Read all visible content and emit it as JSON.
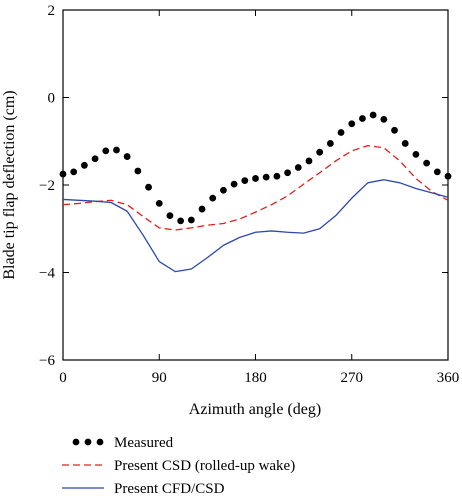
{
  "chart_data": {
    "type": "line",
    "title": "",
    "xlabel": "Azimuth angle (deg)",
    "ylabel": "Blade tip flap deflection (cm)",
    "xlim": [
      0,
      360
    ],
    "ylim": [
      -6,
      2
    ],
    "xticks": [
      0,
      90,
      180,
      270,
      360
    ],
    "yticks": [
      -6,
      -4,
      -2,
      0,
      2
    ],
    "xtick_labels": [
      "0",
      "90",
      "180",
      "270",
      "360"
    ],
    "ytick_labels": [
      "−6",
      "−4",
      "−2",
      "0",
      "2"
    ],
    "grid": false,
    "legend_position": "bottom-left",
    "series": [
      {
        "name": "Measured",
        "style": "dots",
        "color": "#000000",
        "x": [
          0,
          10,
          20,
          30,
          40,
          50,
          60,
          70,
          80,
          90,
          100,
          110,
          120,
          130,
          140,
          150,
          160,
          170,
          180,
          190,
          200,
          210,
          220,
          230,
          240,
          250,
          260,
          270,
          280,
          290,
          300,
          310,
          320,
          330,
          340,
          350,
          360
        ],
        "y": [
          -1.75,
          -1.7,
          -1.55,
          -1.4,
          -1.22,
          -1.2,
          -1.35,
          -1.68,
          -2.05,
          -2.42,
          -2.7,
          -2.82,
          -2.8,
          -2.55,
          -2.3,
          -2.12,
          -1.98,
          -1.9,
          -1.85,
          -1.82,
          -1.8,
          -1.72,
          -1.6,
          -1.45,
          -1.25,
          -1.05,
          -0.8,
          -0.6,
          -0.48,
          -0.4,
          -0.5,
          -0.75,
          -1.05,
          -1.3,
          -1.5,
          -1.7,
          -1.8
        ]
      },
      {
        "name": "Present CSD (rolled-up wake)",
        "style": "dashed",
        "color": "#e0201c",
        "x": [
          0,
          15,
          30,
          45,
          60,
          75,
          90,
          105,
          120,
          135,
          150,
          165,
          180,
          195,
          210,
          225,
          240,
          255,
          270,
          285,
          300,
          315,
          330,
          345,
          360
        ],
        "y": [
          -2.45,
          -2.42,
          -2.38,
          -2.35,
          -2.45,
          -2.72,
          -2.98,
          -3.03,
          -2.98,
          -2.92,
          -2.88,
          -2.78,
          -2.62,
          -2.45,
          -2.25,
          -1.98,
          -1.72,
          -1.45,
          -1.22,
          -1.1,
          -1.15,
          -1.45,
          -1.85,
          -2.15,
          -2.35
        ]
      },
      {
        "name": "Present CFD/CSD",
        "style": "solid",
        "color": "#2a48b0",
        "x": [
          0,
          15,
          30,
          45,
          60,
          75,
          90,
          105,
          120,
          135,
          150,
          165,
          180,
          195,
          210,
          225,
          240,
          255,
          270,
          285,
          300,
          315,
          330,
          345,
          360
        ],
        "y": [
          -2.33,
          -2.35,
          -2.37,
          -2.4,
          -2.6,
          -3.15,
          -3.75,
          -3.98,
          -3.92,
          -3.66,
          -3.38,
          -3.2,
          -3.08,
          -3.05,
          -3.08,
          -3.1,
          -3.0,
          -2.7,
          -2.3,
          -1.95,
          -1.88,
          -1.95,
          -2.08,
          -2.18,
          -2.28
        ]
      }
    ]
  }
}
